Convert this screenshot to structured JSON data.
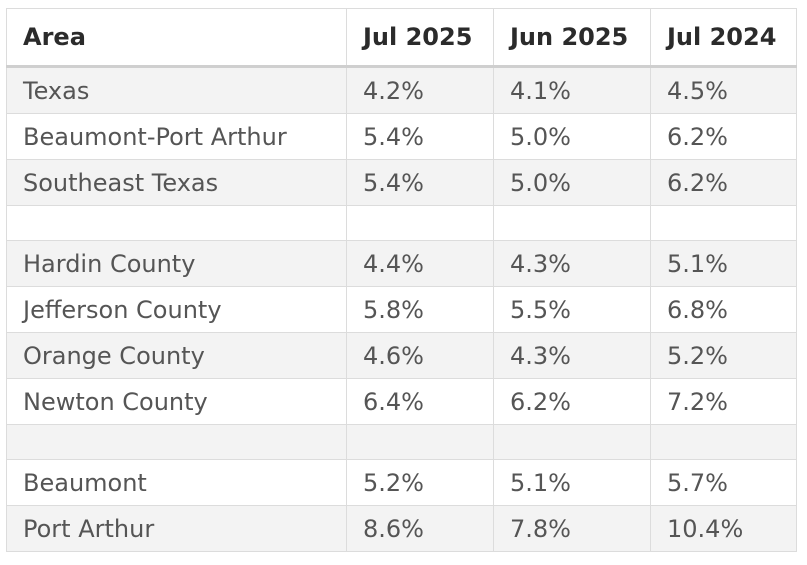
{
  "table": {
    "headers": [
      "Area",
      "Jul 2025",
      "Jun 2025",
      "Jul 2024"
    ],
    "rows": [
      {
        "area": "Texas",
        "jul2025": "4.2%",
        "jun2025": "4.1%",
        "jul2024": "4.5%"
      },
      {
        "area": "Beaumont-Port Arthur",
        "jul2025": "5.4%",
        "jun2025": "5.0%",
        "jul2024": "6.2%"
      },
      {
        "area": "Southeast Texas",
        "jul2025": "5.4%",
        "jun2025": "5.0%",
        "jul2024": "6.2%"
      },
      {
        "area": "",
        "jul2025": "",
        "jun2025": "",
        "jul2024": ""
      },
      {
        "area": "Hardin County",
        "jul2025": "4.4%",
        "jun2025": "4.3%",
        "jul2024": "5.1%"
      },
      {
        "area": "Jefferson County",
        "jul2025": "5.8%",
        "jun2025": "5.5%",
        "jul2024": "6.8%"
      },
      {
        "area": "Orange County",
        "jul2025": "4.6%",
        "jun2025": "4.3%",
        "jul2024": "5.2%"
      },
      {
        "area": "Newton County",
        "jul2025": "6.4%",
        "jun2025": "6.2%",
        "jul2024": "7.2%"
      },
      {
        "area": "",
        "jul2025": "",
        "jun2025": "",
        "jul2024": ""
      },
      {
        "area": "Beaumont",
        "jul2025": "5.2%",
        "jun2025": "5.1%",
        "jul2024": "5.7%"
      },
      {
        "area": "Port Arthur",
        "jul2025": "8.6%",
        "jun2025": "7.8%",
        "jul2024": "10.4%"
      }
    ]
  }
}
